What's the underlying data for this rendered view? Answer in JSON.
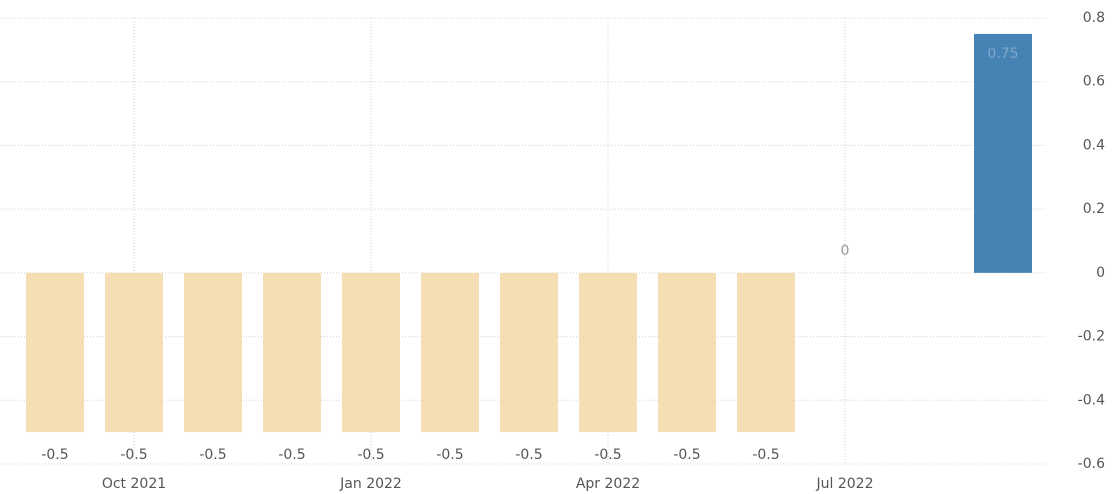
{
  "chart_data": {
    "type": "bar",
    "categories": [
      null,
      "Oct 2021",
      null,
      null,
      "Jan 2022",
      null,
      null,
      "Apr 2022",
      null,
      null,
      "Jul 2022",
      null,
      null
    ],
    "values": [
      -0.5,
      -0.5,
      -0.5,
      -0.5,
      -0.5,
      -0.5,
      -0.5,
      -0.5,
      -0.5,
      -0.5,
      0,
      null,
      0.75
    ],
    "negative_color": "#f5deb3",
    "positive_color": "#4682b4",
    "ylim": [
      -0.6,
      0.8
    ],
    "yticks": [
      -0.6,
      -0.4,
      -0.2,
      0,
      0.2,
      0.4,
      0.6,
      0.8
    ],
    "grid": true,
    "y_axis_side": "right"
  }
}
